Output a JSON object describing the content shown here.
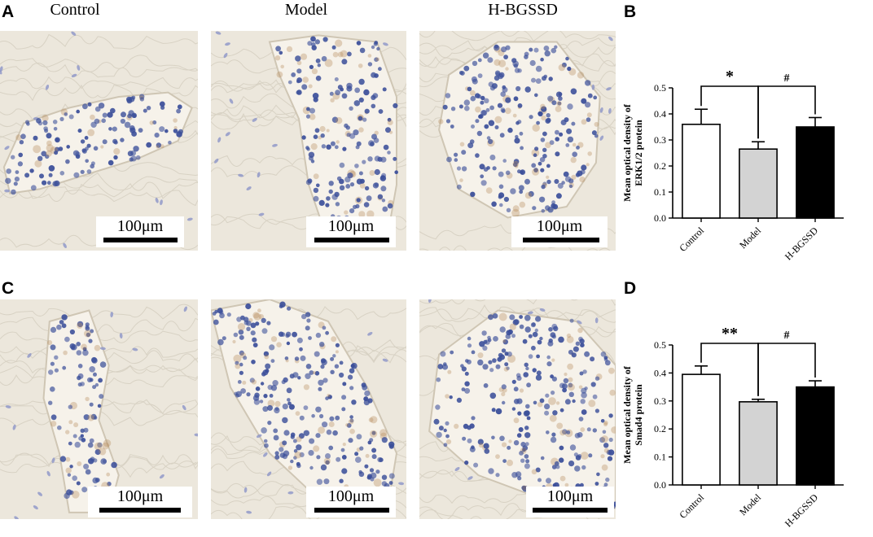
{
  "panel_labels": {
    "a": "A",
    "b": "B",
    "c": "C",
    "d": "D"
  },
  "column_headers": [
    "Control",
    "Model",
    "H-BGSSD"
  ],
  "scale_bar_label": "100μm",
  "colors": {
    "control_fill": "#ffffff",
    "model_fill": "#d3d3d3",
    "hbgssd_fill": "#000000",
    "tissue_background": "#ece7dc",
    "nuclei": "#3b4f9a",
    "brown_stain": "#b48a5a"
  },
  "chart_data": [
    {
      "type": "bar",
      "panel": "B",
      "title": "",
      "categories": [
        "Control",
        "Model",
        "H-BGSSD"
      ],
      "values": [
        0.36,
        0.265,
        0.35
      ],
      "errors": [
        0.058,
        0.028,
        0.036
      ],
      "ylabel": "Mean optical density of ERK1/2 protein",
      "ylim": [
        0,
        0.5
      ],
      "yticks": [
        "0.0",
        "0.1",
        "0.2",
        "0.3",
        "0.4",
        "0.5"
      ],
      "grid": false,
      "significance": [
        {
          "from": 0,
          "to": 1,
          "label": "*"
        },
        {
          "from": 1,
          "to": 2,
          "label": "#"
        }
      ]
    },
    {
      "type": "bar",
      "panel": "D",
      "title": "",
      "categories": [
        "Control",
        "Model",
        "H-BGSSD"
      ],
      "values": [
        0.395,
        0.297,
        0.35
      ],
      "errors": [
        0.03,
        0.009,
        0.022
      ],
      "ylabel": "Mean optical density of Smad4 protein",
      "ylim": [
        0,
        0.5
      ],
      "yticks": [
        "0.0",
        "0.1",
        "0.2",
        "0.3",
        "0.4",
        "0.5"
      ],
      "grid": false,
      "significance": [
        {
          "from": 0,
          "to": 1,
          "label": "**"
        },
        {
          "from": 1,
          "to": 2,
          "label": "#"
        }
      ]
    }
  ]
}
